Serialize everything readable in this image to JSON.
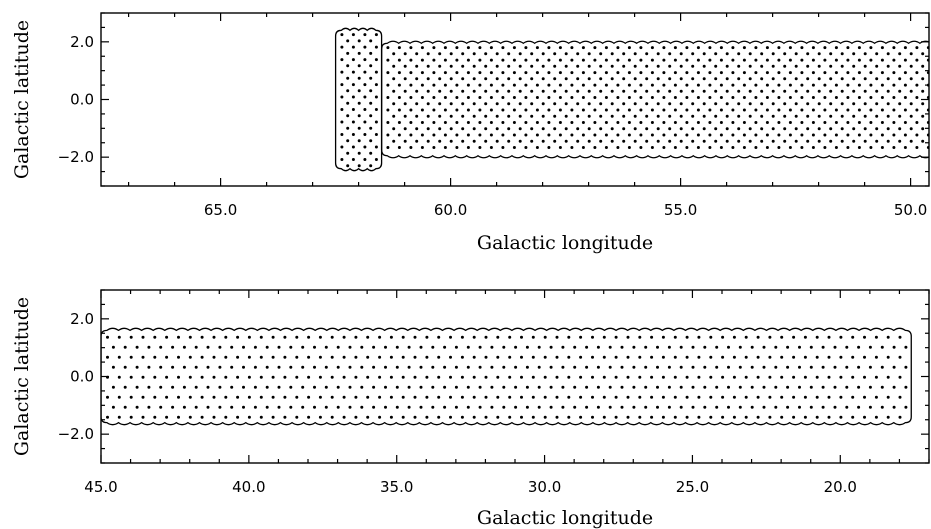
{
  "chart_data": [
    {
      "type": "scatter",
      "description_shape": "hexagonal survey pointing grid enclosed by scalloped coverage outline",
      "xlabel": "Galactic longitude",
      "ylabel": "Galactic latitude",
      "xlim": [
        67.6,
        49.6
      ],
      "ylim": [
        -3.0,
        3.0
      ],
      "x_reversed": true,
      "xticks": [
        65.0,
        60.0,
        55.0,
        50.0,
        45.0
      ],
      "xtick_labels": [
        "65.0",
        "60.0",
        "55.0",
        "50.0",
        "45.0"
      ],
      "yticks": [
        -2.0,
        0.0,
        2.0
      ],
      "ytick_labels": [
        "−2.0",
        "0.0",
        "2.0"
      ],
      "grid": false,
      "regions": [
        {
          "l_max": 62.5,
          "l_min": 61.5,
          "b_min": -2.4,
          "b_max": 2.4
        },
        {
          "l_max": 61.5,
          "l_min": 44.5,
          "b_min": -1.95,
          "b_max": 1.95
        },
        {
          "l_max": 44.5,
          "l_min": 39.6,
          "b_min": -1.6,
          "b_max": 1.6
        }
      ],
      "dot_spacing_deg": 0.25
    },
    {
      "type": "scatter",
      "description_shape": "hexagonal survey pointing grid enclosed by scalloped coverage outline",
      "xlabel": "Galactic longitude",
      "ylabel": "Galactic latitude",
      "xlim": [
        45.0,
        17.0
      ],
      "ylim": [
        -3.0,
        3.0
      ],
      "x_reversed": true,
      "xticks": [
        45.0,
        40.0,
        35.0,
        30.0,
        25.0,
        20.0
      ],
      "xtick_labels": [
        "45.0",
        "40.0",
        "35.0",
        "30.0",
        "25.0",
        "20.0"
      ],
      "yticks": [
        -2.0,
        0.0,
        2.0
      ],
      "ytick_labels": [
        "−2.0",
        "0.0",
        "2.0"
      ],
      "grid": false,
      "regions": [
        {
          "l_max": 45.0,
          "l_min": 17.6,
          "b_min": -1.6,
          "b_max": 1.6
        }
      ],
      "dot_spacing_deg": 0.4
    }
  ]
}
